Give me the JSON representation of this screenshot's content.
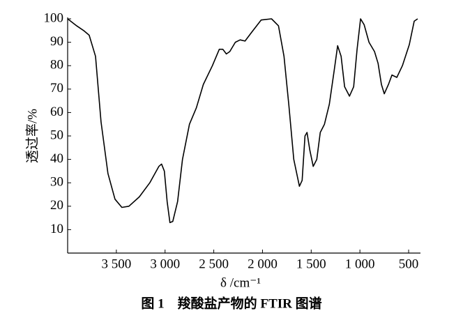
{
  "chart_data": {
    "type": "line",
    "caption": "图 1　羧酸盐产物的 FTIR 图谱",
    "x_label": "δ /cm⁻¹",
    "y_label": "透过率/%",
    "color": "#000000",
    "xlim": [
      4000,
      400
    ],
    "ylim": [
      0,
      100
    ],
    "xticks": [
      {
        "value": 3500,
        "label": "3 500"
      },
      {
        "value": 3000,
        "label": "3 000"
      },
      {
        "value": 2500,
        "label": "2 500"
      },
      {
        "value": 2000,
        "label": "2 000"
      },
      {
        "value": 1500,
        "label": "1 500"
      },
      {
        "value": 1000,
        "label": "1 000"
      },
      500
    ],
    "yticks": [
      10,
      20,
      30,
      40,
      50,
      60,
      70,
      80,
      90,
      100
    ],
    "x": [
      4000,
      3907,
      3836,
      3779,
      3714,
      3657,
      3586,
      3514,
      3443,
      3371,
      3264,
      3157,
      3064,
      3036,
      3007,
      2979,
      2950,
      2921,
      2871,
      2821,
      2750,
      2679,
      2607,
      2514,
      2443,
      2407,
      2371,
      2336,
      2279,
      2229,
      2179,
      2107,
      2014,
      1907,
      1836,
      1779,
      1729,
      1679,
      1621,
      1593,
      1564,
      1543,
      1514,
      1479,
      1443,
      1407,
      1364,
      1314,
      1264,
      1229,
      1193,
      1157,
      1107,
      1064,
      1029,
      993,
      957,
      907,
      850,
      814,
      779,
      750,
      707,
      671,
      621,
      564,
      493,
      443,
      407
    ],
    "values": [
      100,
      97,
      95,
      93,
      84,
      56,
      34,
      23,
      19.5,
      20,
      24,
      30,
      37,
      38,
      35,
      22,
      13,
      13.5,
      22,
      40,
      55,
      62,
      72,
      80,
      87,
      87,
      85,
      86,
      90,
      91,
      90.5,
      94.5,
      99.5,
      100,
      97,
      84,
      63,
      40,
      28.5,
      31,
      50,
      51.5,
      44,
      37,
      40,
      51.5,
      55,
      63.5,
      78,
      88.5,
      84,
      71,
      67,
      71,
      87,
      100,
      97.5,
      90,
      86,
      81,
      72,
      68,
      72,
      76,
      75,
      80,
      89,
      99,
      100
    ]
  }
}
